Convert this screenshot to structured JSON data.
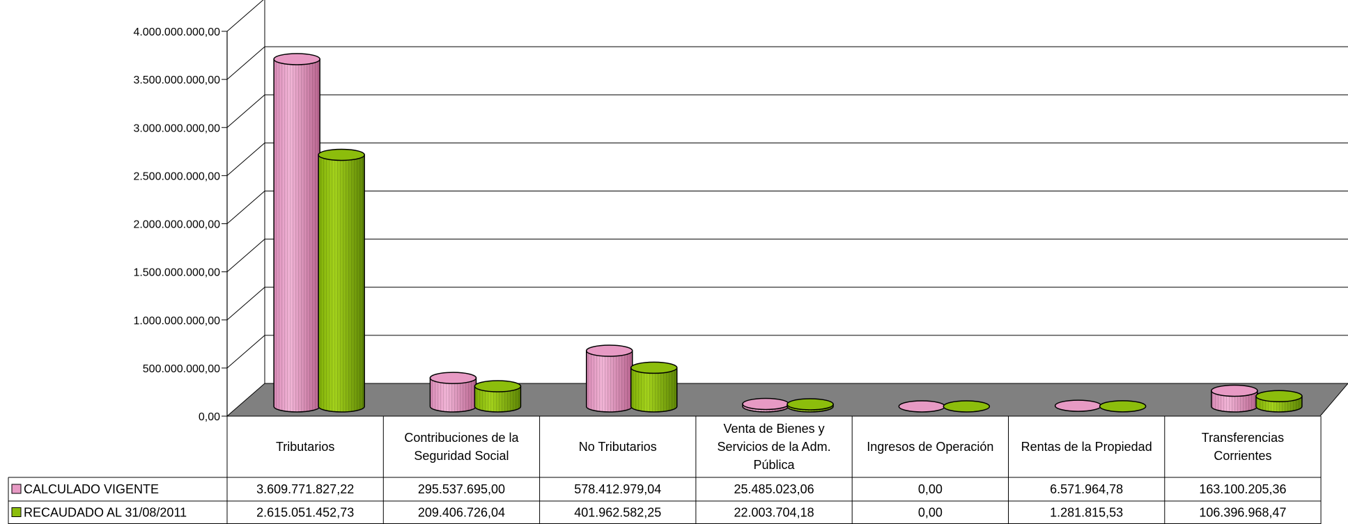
{
  "chart_data": {
    "type": "bar",
    "style": "3d-cylinder",
    "title": "",
    "xlabel": "",
    "ylabel": "",
    "ylim": [
      0,
      4000000000
    ],
    "y_ticks": [
      "0,00",
      "500.000.000,00",
      "1.000.000.000,00",
      "1.500.000.000,00",
      "2.000.000.000,00",
      "2.500.000.000,00",
      "3.000.000.000,00",
      "3.500.000.000,00",
      "4.000.000.000,00"
    ],
    "grid": true,
    "legend_position": "data-table-left",
    "categories": [
      [
        "Tributarios"
      ],
      [
        "Contribuciones de la",
        "Seguridad Social"
      ],
      [
        "No Tributarios"
      ],
      [
        "Venta de Bienes y",
        "Servicios de la Adm.",
        "Pública"
      ],
      [
        "Ingresos de Operación"
      ],
      [
        "Rentas de la Propiedad"
      ],
      [
        "Transferencias",
        "Corrientes"
      ]
    ],
    "series": [
      {
        "name": "CALCULADO VIGENTE",
        "color": "#e79ac4",
        "values": [
          3609771827.22,
          295537695.0,
          578412979.04,
          25485023.06,
          0.0,
          6571964.78,
          163100205.36
        ],
        "labels": [
          "3.609.771.827,22",
          "295.537.695,00",
          "578.412.979,04",
          "25.485.023,06",
          "0,00",
          "6.571.964,78",
          "163.100.205,36"
        ]
      },
      {
        "name": "RECAUDADO AL  31/08/2011",
        "color": "#8cbd0c",
        "values": [
          2615051452.73,
          209406726.04,
          401962582.25,
          22003704.18,
          0.0,
          1281815.53,
          106396968.47
        ],
        "labels": [
          "2.615.051.452,73",
          "209.406.726,04",
          "401.962.582,25",
          "22.003.704,18",
          "0,00",
          "1.281.815,53",
          "106.396.968,47"
        ]
      }
    ]
  }
}
